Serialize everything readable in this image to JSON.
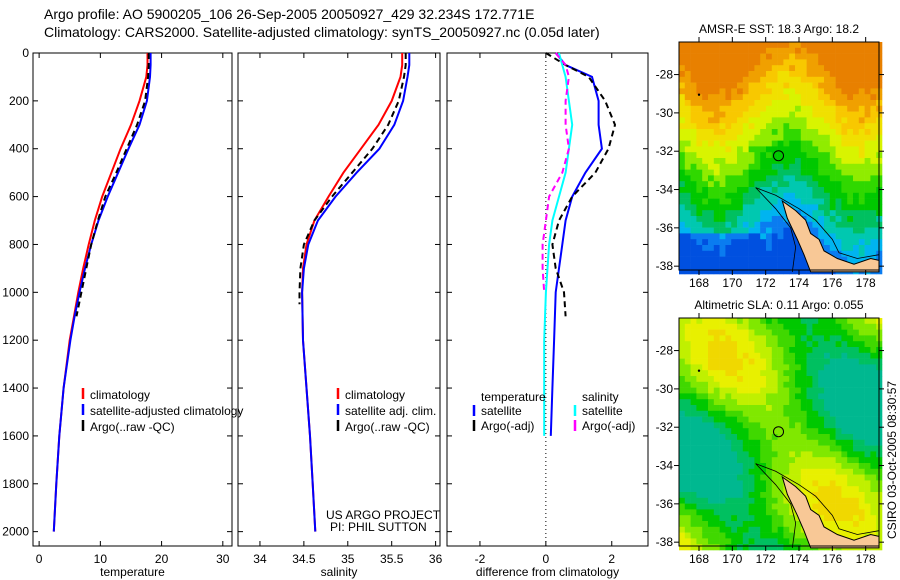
{
  "header": {
    "title_line1": "Argo profile: AO 5900205_106 26-Sep-2005 20050927_429 32.234S 172.771E",
    "title_line2": "Climatology: CARS2000. Satellite-adjusted climatology: synTS_20050927.nc (0.05d later)"
  },
  "credit": "CSIRO 03-Oct-2005 08:30:57",
  "chart_data": [
    {
      "type": "line",
      "name": "temperature",
      "xlabel": "temperature",
      "xlim": [
        -1,
        31.5
      ],
      "xticks": [
        "0",
        "10",
        "20",
        "30"
      ],
      "xtick_values": [
        0,
        10,
        20,
        30
      ],
      "ylim": [
        0,
        2060
      ],
      "yticks": [
        "0",
        "200",
        "400",
        "600",
        "800",
        "1000",
        "1200",
        "1400",
        "1600",
        "1800",
        "2000"
      ],
      "ytick_values": [
        0,
        200,
        400,
        600,
        800,
        1000,
        1200,
        1400,
        1600,
        1800,
        2000
      ],
      "legend": [
        "climatology",
        "satellite-adjusted climatology",
        "Argo(..raw -QC)"
      ],
      "legend_position": "lower-right",
      "series": [
        {
          "name": "climatology",
          "color": "#ff0000",
          "dash": false,
          "depth": [
            0,
            50,
            100,
            200,
            300,
            400,
            500,
            600,
            700,
            800,
            900,
            1000,
            1100,
            1200,
            1400,
            1600,
            1800,
            2000
          ],
          "values": [
            17.7,
            17.7,
            17.5,
            16.4,
            15.0,
            13.3,
            11.8,
            10.3,
            9.1,
            8.1,
            7.2,
            6.4,
            5.7,
            5.0,
            4.0,
            3.3,
            2.8,
            2.4
          ]
        },
        {
          "name": "satellite-adjusted climatology",
          "color": "#0000ff",
          "dash": false,
          "depth": [
            0,
            50,
            100,
            200,
            300,
            400,
            500,
            600,
            700,
            800,
            900,
            1000,
            1100,
            1200,
            1400,
            1600,
            1800,
            2000
          ],
          "values": [
            18.2,
            18.2,
            18.1,
            17.6,
            16.4,
            14.6,
            12.9,
            11.2,
            9.7,
            8.5,
            7.5,
            6.6,
            5.8,
            5.1,
            4.0,
            3.3,
            2.8,
            2.4
          ]
        },
        {
          "name": "Argo(..raw -QC)",
          "color": "#000000",
          "dash": true,
          "depth": [
            0,
            50,
            100,
            200,
            300,
            400,
            500,
            600,
            700,
            800,
            900,
            1000,
            1100
          ],
          "values": [
            17.9,
            17.9,
            17.8,
            17.3,
            16.0,
            14.3,
            12.6,
            10.8,
            9.6,
            8.5,
            7.7,
            6.9,
            6.1
          ]
        }
      ]
    },
    {
      "type": "line",
      "name": "salinity",
      "xlabel": "salinity",
      "xlim": [
        33.75,
        36.05
      ],
      "xticks": [
        "34",
        "34.5",
        "35",
        "35.5",
        "36"
      ],
      "xtick_values": [
        34,
        34.5,
        35,
        35.5,
        36
      ],
      "ylim": [
        0,
        2060
      ],
      "legend": [
        "climatology",
        "satellite adj. clim.",
        "Argo(..raw -QC)"
      ],
      "legend_position": "lower-right",
      "annotation": [
        "US ARGO PROJECT",
        "PI: PHIL SUTTON"
      ],
      "series": [
        {
          "name": "climatology",
          "color": "#ff0000",
          "dash": false,
          "depth": [
            0,
            50,
            100,
            200,
            300,
            400,
            500,
            600,
            700,
            800,
            900,
            1000,
            1200,
            1400,
            1600,
            1800,
            2000
          ],
          "values": [
            35.62,
            35.62,
            35.6,
            35.5,
            35.35,
            35.15,
            34.95,
            34.78,
            34.62,
            34.53,
            34.49,
            34.48,
            34.49,
            34.53,
            34.57,
            34.6,
            34.63
          ]
        },
        {
          "name": "satellite adj. clim.",
          "color": "#0000ff",
          "dash": false,
          "depth": [
            0,
            50,
            100,
            200,
            300,
            400,
            500,
            600,
            700,
            800,
            900,
            1000,
            1200,
            1400,
            1600,
            1800,
            2000
          ],
          "values": [
            35.7,
            35.7,
            35.68,
            35.63,
            35.53,
            35.36,
            35.1,
            34.86,
            34.66,
            34.55,
            34.5,
            34.48,
            34.49,
            34.53,
            34.57,
            34.6,
            34.63
          ]
        },
        {
          "name": "Argo(..raw -QC)",
          "color": "#000000",
          "dash": true,
          "depth": [
            0,
            50,
            100,
            200,
            300,
            400,
            500,
            600,
            700,
            800,
            900,
            1000,
            1050
          ],
          "values": [
            35.66,
            35.66,
            35.64,
            35.58,
            35.46,
            35.28,
            35.05,
            34.82,
            34.62,
            34.5,
            34.46,
            34.45,
            34.45
          ]
        }
      ]
    },
    {
      "type": "line",
      "name": "difference",
      "xlabel": "difference from climatology",
      "xlim": [
        -3,
        3.1
      ],
      "xticks": [
        "-2",
        "0",
        "2"
      ],
      "xtick_values": [
        -2,
        0,
        2
      ],
      "ylim": [
        0,
        2060
      ],
      "legend_headers": [
        "temperature",
        "salinity"
      ],
      "legend": [
        "satellite",
        "Argo(-adj)",
        "satellite",
        "Argo(-adj)"
      ],
      "legend_position": "lower-center",
      "series": [
        {
          "name": "temperature satellite",
          "color": "#0000ff",
          "dash": false,
          "depth": [
            0,
            50,
            100,
            200,
            300,
            400,
            500,
            600,
            700,
            800,
            900,
            1000,
            1200,
            1400,
            1600
          ],
          "values": [
            0.3,
            0.6,
            1.4,
            1.6,
            1.6,
            1.7,
            1.2,
            0.8,
            0.6,
            0.5,
            0.4,
            0.3,
            0.25,
            0.2,
            0.15
          ]
        },
        {
          "name": "temperature Argo(-adj)",
          "color": "#000000",
          "dash": true,
          "depth": [
            0,
            50,
            100,
            200,
            300,
            400,
            500,
            600,
            700,
            800,
            900,
            1000,
            1100
          ],
          "values": [
            0.0,
            0.6,
            1.3,
            1.8,
            2.1,
            1.9,
            1.5,
            0.8,
            0.4,
            0.2,
            0.3,
            0.55,
            0.6
          ]
        },
        {
          "name": "salinity satellite",
          "color": "#00ffff",
          "dash": false,
          "depth": [
            0,
            50,
            100,
            200,
            300,
            400,
            500,
            600,
            700,
            800,
            1000,
            1200,
            1400,
            1600
          ],
          "values": [
            0.4,
            0.5,
            0.6,
            0.7,
            0.8,
            0.7,
            0.6,
            0.4,
            0.2,
            0.1,
            0.0,
            -0.05,
            -0.05,
            -0.05
          ]
        },
        {
          "name": "salinity Argo(-adj)",
          "color": "#ff00ff",
          "dash": true,
          "depth": [
            0,
            50,
            100,
            200,
            300,
            400,
            500,
            600,
            700,
            800,
            900,
            1000
          ],
          "values": [
            0.3,
            0.6,
            0.7,
            0.6,
            0.6,
            0.7,
            0.5,
            0.1,
            0.0,
            -0.1,
            -0.1,
            -0.05
          ]
        }
      ]
    },
    {
      "type": "heatmap",
      "name": "sst-map",
      "title": "AMSR-E SST: 18.3 Argo: 18.2",
      "xticks": [
        "168",
        "170",
        "172",
        "174",
        "176",
        "178"
      ],
      "xtick_values": [
        168,
        170,
        172,
        174,
        176,
        178
      ],
      "yticks": [
        "-28",
        "-30",
        "-32",
        "-34",
        "-36",
        "-38"
      ],
      "ytick_values": [
        -28,
        -30,
        -32,
        -34,
        -36,
        -38
      ],
      "xlim": [
        166.8,
        178.8
      ],
      "ylim": [
        -38.2,
        -26.3
      ],
      "float_position": [
        172.771,
        -32.234
      ]
    },
    {
      "type": "heatmap",
      "name": "sla-map",
      "title": "Altimetric SLA: 0.11 Argo: 0.055",
      "xticks": [
        "168",
        "170",
        "172",
        "174",
        "176",
        "178"
      ],
      "xtick_values": [
        168,
        170,
        172,
        174,
        176,
        178
      ],
      "yticks": [
        "-28",
        "-30",
        "-32",
        "-34",
        "-36",
        "-38"
      ],
      "ytick_values": [
        -28,
        -30,
        -32,
        -34,
        -36,
        -38
      ],
      "xlim": [
        166.8,
        178.8
      ],
      "ylim": [
        -38.2,
        -26.3
      ],
      "float_position": [
        172.771,
        -32.234
      ]
    }
  ]
}
